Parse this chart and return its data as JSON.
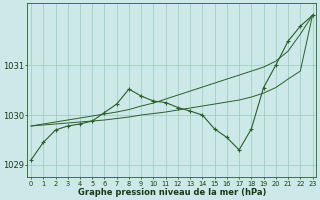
{
  "xlabel": "Graphe pression niveau de la mer (hPa)",
  "hours": [
    0,
    1,
    2,
    3,
    4,
    5,
    6,
    7,
    8,
    9,
    10,
    11,
    12,
    13,
    14,
    15,
    16,
    17,
    18,
    19,
    20,
    21,
    22,
    23
  ],
  "pressure": [
    1029.1,
    1029.45,
    1029.7,
    1029.78,
    1029.82,
    1029.88,
    1030.05,
    1030.22,
    1030.52,
    1030.38,
    1030.28,
    1030.25,
    1030.15,
    1030.08,
    1030.0,
    1029.72,
    1029.55,
    1029.3,
    1029.72,
    1030.55,
    1031.0,
    1031.48,
    1031.78,
    1032.0
  ],
  "env_top": [
    1029.78,
    1029.82,
    1029.86,
    1029.9,
    1029.94,
    1029.98,
    1030.02,
    1030.06,
    1030.11,
    1030.18,
    1030.24,
    1030.32,
    1030.4,
    1030.48,
    1030.56,
    1030.64,
    1030.72,
    1030.8,
    1030.88,
    1030.96,
    1031.08,
    1031.28,
    1031.62,
    1032.0
  ],
  "env_bot": [
    1029.78,
    1029.8,
    1029.82,
    1029.84,
    1029.86,
    1029.88,
    1029.9,
    1029.93,
    1029.96,
    1030.0,
    1030.03,
    1030.06,
    1030.1,
    1030.14,
    1030.18,
    1030.22,
    1030.26,
    1030.3,
    1030.36,
    1030.44,
    1030.55,
    1030.72,
    1030.88,
    1032.0
  ],
  "line_color": "#2a5f2a",
  "bg_color": "#cce8e8",
  "grid_color": "#99ccbb",
  "ylim": [
    1028.75,
    1032.25
  ],
  "yticks": [
    1029,
    1030,
    1031
  ],
  "xlim": [
    -0.3,
    23.3
  ]
}
